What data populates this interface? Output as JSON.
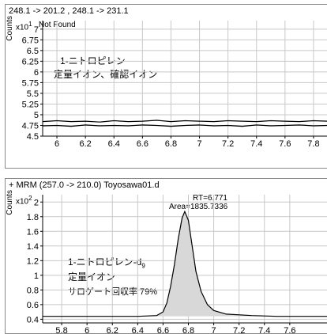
{
  "chart_data": [
    {
      "type": "line",
      "header": "248.1 -> 201.2 , 248.1 -> 231.1",
      "ylabel": "Counts",
      "y_scale": "x10 1",
      "status": "Not Found",
      "annotations": [
        "1-ニトロピレン",
        "定量イオン、確認イオン"
      ],
      "ylim": [
        4.5,
        7.2
      ],
      "xlim": [
        5.9,
        7.9
      ],
      "y_ticks": [
        "7",
        "6.75",
        "6.5",
        "6.25",
        "6",
        "5.75",
        "5.5",
        "5.25",
        "5",
        "4.75",
        "4.5"
      ],
      "x_ticks": [
        "6",
        "6.2",
        "6.4",
        "6.6",
        "6.8",
        "7",
        "7.2",
        "7.4",
        "7.6",
        "7.8"
      ],
      "grid": true,
      "series": [
        {
          "x": [
            5.9,
            6.0,
            6.1,
            6.2,
            6.3,
            6.4,
            6.5,
            6.6,
            6.7,
            6.8,
            6.9,
            7.0,
            7.1,
            7.2,
            7.3,
            7.4,
            7.5,
            7.6,
            7.7,
            7.8,
            7.9
          ],
          "y": [
            4.84,
            4.86,
            4.84,
            4.85,
            4.83,
            4.86,
            4.84,
            4.85,
            4.87,
            4.84,
            4.86,
            4.85,
            4.84,
            4.86,
            4.85,
            4.84,
            4.86,
            4.85,
            4.84,
            4.86,
            4.85
          ]
        },
        {
          "x": [
            5.9,
            6.0,
            6.1,
            6.2,
            6.3,
            6.4,
            6.5,
            6.6,
            6.7,
            6.8,
            6.9,
            7.0,
            7.1,
            7.2,
            7.3,
            7.4,
            7.5,
            7.6,
            7.7,
            7.8,
            7.9
          ],
          "y": [
            4.74,
            4.75,
            4.73,
            4.76,
            4.74,
            4.75,
            4.74,
            4.76,
            4.75,
            4.73,
            4.75,
            4.76,
            4.74,
            4.75,
            4.73,
            4.76,
            4.74,
            4.75,
            4.76,
            4.74,
            4.75
          ]
        }
      ]
    },
    {
      "type": "area",
      "header": "+ MRM (257.0 -> 210.0) Toyosawa01.d",
      "ylabel": "Counts",
      "y_scale": "x10 2",
      "peak_label": [
        "RT=6.771",
        "Area=1835.7336"
      ],
      "annotations": [
        "1-ニトロピレン-d",
        "9",
        "定量イオン",
        "サロゲート回収率  79%"
      ],
      "ylim": [
        0.35,
        2.1
      ],
      "xlim": [
        5.65,
        7.9
      ],
      "y_ticks": [
        "2",
        "1.8",
        "1.6",
        "1.4",
        "1.2",
        "1",
        "0.8",
        "0.6",
        "0.4"
      ],
      "x_ticks": [
        "5.8",
        "6",
        "6.2",
        "6.4",
        "6.6",
        "6.8",
        "7",
        "7.2",
        "7.4",
        "7.6"
      ],
      "grid": true,
      "series": [
        {
          "x": [
            5.65,
            6.0,
            6.4,
            6.55,
            6.6,
            6.63,
            6.66,
            6.69,
            6.72,
            6.75,
            6.771,
            6.8,
            6.83,
            6.86,
            6.9,
            6.95,
            7.0,
            7.1,
            7.3,
            7.5,
            7.9
          ],
          "y": [
            0.44,
            0.44,
            0.44,
            0.45,
            0.5,
            0.62,
            0.85,
            1.15,
            1.5,
            1.78,
            1.87,
            1.75,
            1.4,
            1.05,
            0.78,
            0.6,
            0.52,
            0.47,
            0.45,
            0.44,
            0.44
          ]
        }
      ]
    }
  ]
}
